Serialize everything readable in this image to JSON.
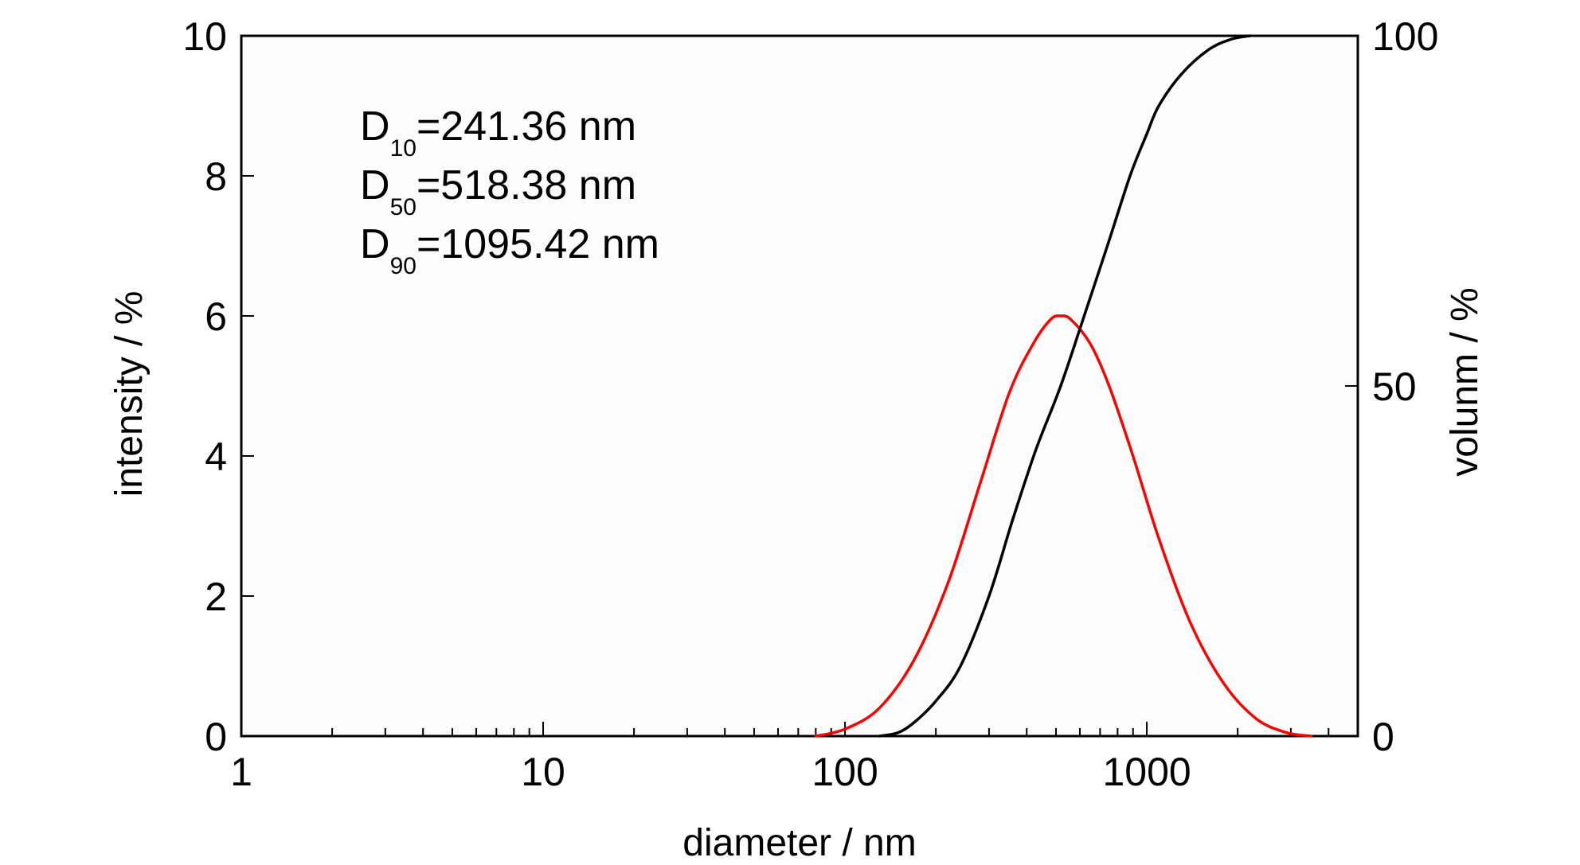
{
  "chart_data": {
    "type": "line",
    "xlabel": "diameter / nm",
    "ylabel_left": "intensity / %",
    "ylabel_right": "volunm / %",
    "x_scale": "log",
    "xlim": [
      1,
      5000
    ],
    "ylim_left": [
      0,
      10
    ],
    "ylim_right": [
      0,
      100
    ],
    "x_ticks": [
      1,
      10,
      100,
      1000
    ],
    "x_tick_labels": [
      "1",
      "10",
      "100",
      "1000"
    ],
    "y_left_ticks": [
      0,
      2,
      4,
      6,
      8,
      10
    ],
    "y_left_tick_labels": [
      "0",
      "2",
      "4",
      "6",
      "8",
      "10"
    ],
    "y_right_ticks": [
      0,
      50,
      100
    ],
    "y_right_tick_labels": [
      "0",
      "50",
      "100"
    ],
    "grid": false,
    "annotations": [
      {
        "base": "D",
        "sub": "10",
        "text": "=241.36 nm"
      },
      {
        "base": "D",
        "sub": "50",
        "text": "=518.38 nm"
      },
      {
        "base": "D",
        "sub": "90",
        "text": "=1095.42 nm"
      }
    ],
    "series": [
      {
        "axis": "left",
        "color": "#ff0000",
        "x": [
          80,
          100,
          130,
          170,
          220,
          280,
          350,
          420,
          480,
          518,
          560,
          650,
          750,
          900,
          1100,
          1400,
          1800,
          2300,
          2900,
          3500
        ],
        "y": [
          0.0,
          0.1,
          0.4,
          1.1,
          2.2,
          3.6,
          4.9,
          5.6,
          5.95,
          6.0,
          5.95,
          5.6,
          5.0,
          4.0,
          2.8,
          1.6,
          0.75,
          0.25,
          0.05,
          0.0
        ]
      },
      {
        "axis": "right",
        "color": "#000000",
        "x": [
          130,
          150,
          170,
          200,
          241.36,
          300,
          360,
          430,
          518.38,
          620,
          740,
          880,
          1000,
          1095.42,
          1300,
          1600,
          1900,
          2200
        ],
        "y": [
          0,
          0.5,
          2,
          5,
          10,
          20,
          31,
          41,
          50,
          60,
          70,
          80,
          86,
          90,
          94.5,
          98,
          99.5,
          100
        ]
      }
    ]
  }
}
